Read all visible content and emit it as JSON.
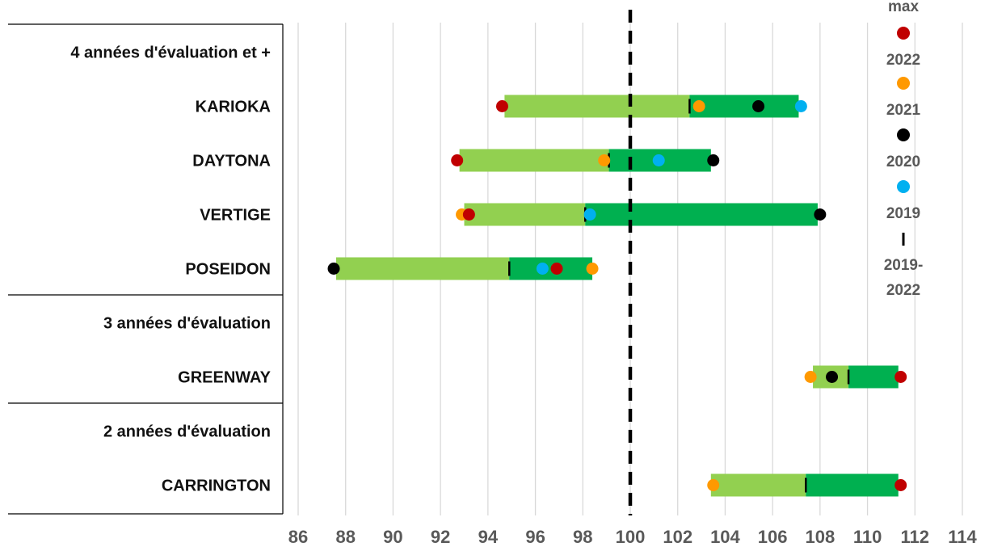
{
  "chart_data": {
    "type": "range-dot",
    "xlim": [
      86,
      114
    ],
    "xticks": [
      "86",
      "88",
      "90",
      "92",
      "94",
      "96",
      "98",
      "100",
      "102",
      "104",
      "106",
      "108",
      "110",
      "112",
      "114"
    ],
    "reference_line": 100,
    "grid": "vertical",
    "legend_position": "right",
    "colors": {
      "range_low": "#92D050",
      "range_high": "#00B050",
      "year_2022": "#C00000",
      "year_2021": "#FF9900",
      "year_2020": "#000000",
      "year_2019": "#00B0F0",
      "mean_2019_2022": "#000000",
      "reference": "#000000",
      "grid": "#D9D9D9"
    },
    "legend": [
      {
        "key": "max",
        "label": "max",
        "marker": "none"
      },
      {
        "key": "y2022",
        "label": "2022",
        "marker": "dot",
        "color": "#C00000"
      },
      {
        "key": "y2021",
        "label": "2021",
        "marker": "dot",
        "color": "#FF9900"
      },
      {
        "key": "y2020",
        "label": "2020",
        "marker": "dot",
        "color": "#000000"
      },
      {
        "key": "y2019",
        "label": "2019",
        "marker": "dot",
        "color": "#00B0F0"
      },
      {
        "key": "mean",
        "label": "2019-\n2022",
        "marker": "tick",
        "color": "#000000"
      }
    ],
    "groups": [
      {
        "label": "4 années d'évaluation et +",
        "rows": [
          {
            "label": "KARIOKA",
            "min": 94.7,
            "mean": 102.5,
            "max": 107.1,
            "y2022": 94.6,
            "y2021": 102.9,
            "y2020": 105.4,
            "y2019": 107.2
          },
          {
            "label": "DAYTONA",
            "min": 92.8,
            "mean": 99.1,
            "max": 103.4,
            "y2022": 92.7,
            "y2021": 98.9,
            "y2020": 103.5,
            "y2019": 101.2
          },
          {
            "label": "VERTIGE",
            "min": 93.0,
            "mean": 98.1,
            "max": 107.9,
            "y2022": 93.2,
            "y2021": 92.9,
            "y2020": 108.0,
            "y2019": 98.3
          },
          {
            "label": "POSEIDON",
            "min": 87.6,
            "mean": 94.9,
            "max": 98.4,
            "y2022": 96.9,
            "y2021": 98.4,
            "y2020": 87.5,
            "y2019": 96.3
          }
        ]
      },
      {
        "label": "3 années d'évaluation",
        "rows": [
          {
            "label": "GREENWAY",
            "min": 107.7,
            "mean": 109.2,
            "max": 111.3,
            "y2022": 111.4,
            "y2021": 107.6,
            "y2020": 108.5
          }
        ]
      },
      {
        "label": "2 années d'évaluation",
        "rows": [
          {
            "label": "CARRINGTON",
            "min": 103.4,
            "mean": 107.4,
            "max": 111.3,
            "y2022": 111.4,
            "y2021": 103.5
          }
        ]
      }
    ]
  }
}
